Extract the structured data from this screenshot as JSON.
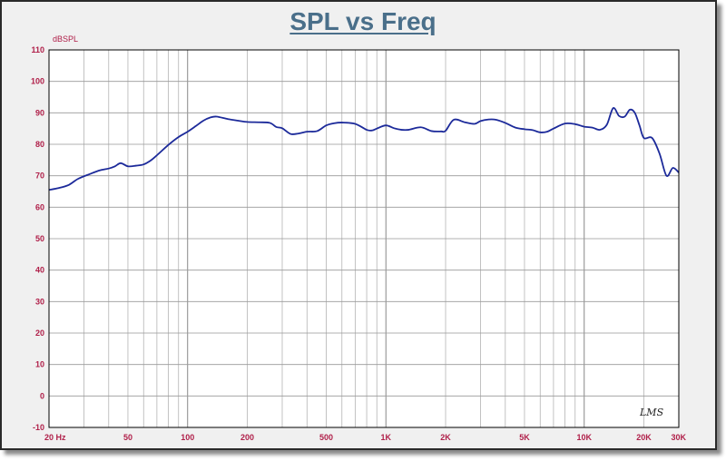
{
  "chart_data": {
    "type": "line",
    "title": "SPL vs Freq",
    "ylabel": "dBSPL",
    "xscale": "log",
    "xlim": [
      20,
      30000
    ],
    "ylim": [
      -10,
      110
    ],
    "y_ticks": [
      110,
      100,
      90,
      80,
      70,
      60,
      50,
      40,
      30,
      20,
      10,
      0,
      -10
    ],
    "x_ticks": [
      {
        "value": 20,
        "label": "20 Hz"
      },
      {
        "value": 50,
        "label": "50"
      },
      {
        "value": 100,
        "label": "100"
      },
      {
        "value": 200,
        "label": "200"
      },
      {
        "value": 500,
        "label": "500"
      },
      {
        "value": 1000,
        "label": "1K"
      },
      {
        "value": 2000,
        "label": "2K"
      },
      {
        "value": 5000,
        "label": "5K"
      },
      {
        "value": 10000,
        "label": "10K"
      },
      {
        "value": 20000,
        "label": "20K"
      },
      {
        "value": 30000,
        "label": "30K"
      }
    ],
    "grid": true,
    "series": [
      {
        "name": "",
        "color": "#1c2a9a",
        "x": [
          20,
          22,
          25,
          28,
          32,
          36,
          40,
          43,
          46,
          50,
          55,
          60,
          65,
          70,
          80,
          90,
          100,
          110,
          120,
          130,
          140,
          160,
          180,
          200,
          230,
          260,
          280,
          300,
          330,
          360,
          400,
          450,
          500,
          550,
          600,
          700,
          800,
          850,
          900,
          1000,
          1100,
          1200,
          1300,
          1500,
          1700,
          1900,
          2000,
          2200,
          2500,
          2800,
          3000,
          3300,
          3600,
          4000,
          4500,
          5000,
          5500,
          6000,
          6500,
          7000,
          8000,
          9000,
          10000,
          11000,
          12000,
          13000,
          14000,
          15000,
          16000,
          17000,
          18000,
          19000,
          20000,
          22000,
          24000,
          26000,
          28000,
          30000
        ],
        "y": [
          65.5,
          66,
          67,
          69,
          70.5,
          71.7,
          72.3,
          73,
          74,
          73,
          73.2,
          73.6,
          74.8,
          76.5,
          79.8,
          82.3,
          84,
          85.8,
          87.5,
          88.5,
          88.8,
          88,
          87.5,
          87.1,
          87,
          86.8,
          85.5,
          85.1,
          83.3,
          83.4,
          84,
          84.2,
          86,
          86.7,
          86.9,
          86.5,
          84.6,
          84.4,
          85,
          86,
          85.1,
          84.6,
          84.6,
          85.4,
          84.2,
          84.1,
          84.3,
          87.8,
          87,
          86.5,
          87.4,
          87.9,
          87.8,
          86.8,
          85.3,
          84.8,
          84.5,
          83.8,
          84,
          85,
          86.6,
          86.4,
          85.6,
          85.3,
          84.6,
          86.2,
          91.5,
          89,
          88.8,
          91,
          90,
          86,
          82,
          82,
          77,
          70,
          72.5,
          71
        ]
      }
    ]
  },
  "logo_text": "LMS"
}
